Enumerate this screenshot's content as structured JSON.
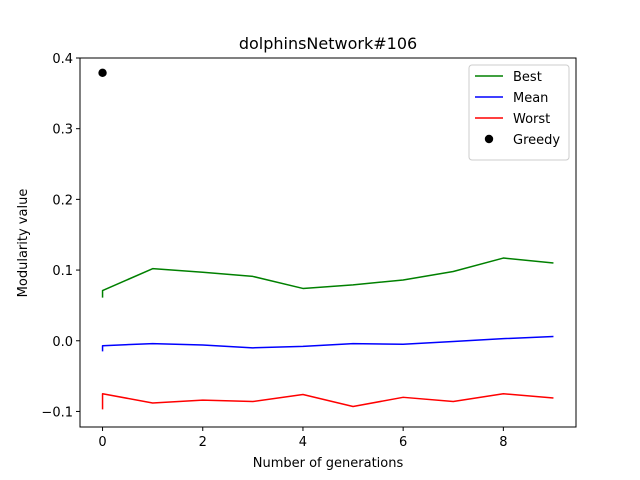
{
  "chart_data": {
    "type": "line",
    "title": "dolphinsNetwork#106",
    "xlabel": "Number of generations",
    "ylabel": "Modularity value",
    "xlim": [
      -0.45,
      9.45
    ],
    "ylim": [
      -0.122,
      0.4
    ],
    "xticks": [
      0,
      2,
      4,
      6,
      8
    ],
    "xtick_labels": [
      "0",
      "2",
      "4",
      "6",
      "8"
    ],
    "yticks": [
      -0.1,
      0.0,
      0.1,
      0.2,
      0.3,
      0.4
    ],
    "ytick_labels": [
      "−0.1",
      "0.0",
      "0.1",
      "0.2",
      "0.3",
      "0.4"
    ],
    "grid": false,
    "legend_position": "top-right",
    "series": [
      {
        "name": "Best",
        "color": "#008000",
        "kind": "line",
        "x": [
          0,
          0,
          1,
          2,
          3,
          4,
          5,
          6,
          7,
          8,
          9
        ],
        "y": [
          0.061,
          0.071,
          0.102,
          0.097,
          0.091,
          0.074,
          0.079,
          0.086,
          0.098,
          0.117,
          0.11
        ]
      },
      {
        "name": "Mean",
        "color": "#0000ff",
        "kind": "line",
        "x": [
          0,
          0,
          1,
          2,
          3,
          4,
          5,
          6,
          7,
          8,
          9
        ],
        "y": [
          -0.015,
          -0.007,
          -0.004,
          -0.006,
          -0.01,
          -0.008,
          -0.004,
          -0.005,
          -0.001,
          0.003,
          0.006
        ]
      },
      {
        "name": "Worst",
        "color": "#ff0000",
        "kind": "line",
        "x": [
          0,
          0,
          1,
          2,
          3,
          4,
          5,
          6,
          7,
          8,
          9
        ],
        "y": [
          -0.097,
          -0.075,
          -0.088,
          -0.084,
          -0.086,
          -0.076,
          -0.093,
          -0.08,
          -0.086,
          -0.075,
          -0.081
        ]
      },
      {
        "name": "Greedy",
        "color": "#000000",
        "kind": "point",
        "x": [
          0
        ],
        "y": [
          0.379
        ]
      }
    ]
  }
}
